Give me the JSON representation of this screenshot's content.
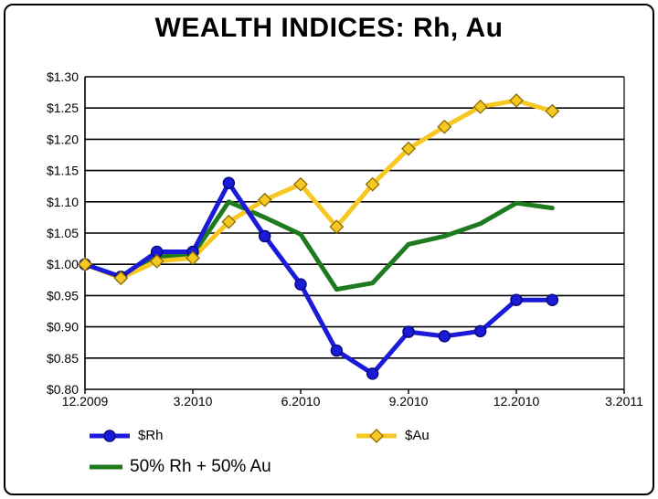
{
  "chart_data": {
    "type": "line",
    "title": "WEALTH INDICES: Rh, Au",
    "xlabel": "",
    "ylabel": "",
    "ylim": [
      0.8,
      1.3
    ],
    "y_ticks": [
      "$1.30",
      "$1.25",
      "$1.20",
      "$1.15",
      "$1.10",
      "$1.05",
      "$1.00",
      "$0.95",
      "$0.90",
      "$0.85",
      "$0.80"
    ],
    "x_ticks": [
      "12.2009",
      "3.2010",
      "6.2010",
      "9.2010",
      "12.2010",
      "3.2011"
    ],
    "x_months_range": [
      0,
      15
    ],
    "grid": true,
    "series": [
      {
        "name": "$Rh",
        "color": "#1a1ad8",
        "marker": "circle",
        "x": [
          0,
          1,
          2,
          3,
          4,
          5,
          6,
          7,
          8,
          9,
          10,
          11,
          12,
          13
        ],
        "values": [
          1.0,
          0.98,
          1.02,
          1.02,
          1.13,
          1.045,
          0.968,
          0.862,
          0.825,
          0.892,
          0.885,
          0.893,
          0.943,
          0.943
        ]
      },
      {
        "name": "$Au",
        "color": "#f7c822",
        "marker": "diamond",
        "x": [
          0,
          1,
          2,
          3,
          4,
          5,
          6,
          7,
          8,
          9,
          10,
          11,
          12,
          13
        ],
        "values": [
          1.0,
          0.978,
          1.005,
          1.01,
          1.068,
          1.103,
          1.128,
          1.06,
          1.128,
          1.185,
          1.22,
          1.252,
          1.262,
          1.245
        ]
      },
      {
        "name": "50% Rh + 50% Au",
        "color": "#1e7a1e",
        "marker": "none",
        "x": [
          0,
          1,
          2,
          3,
          4,
          5,
          6,
          7,
          8,
          9,
          10,
          11,
          12,
          13
        ],
        "values": [
          1.0,
          0.98,
          1.012,
          1.015,
          1.1,
          1.075,
          1.048,
          0.96,
          0.97,
          1.032,
          1.045,
          1.065,
          1.098,
          1.09
        ]
      }
    ],
    "legend": {
      "placement": "bottom"
    }
  }
}
